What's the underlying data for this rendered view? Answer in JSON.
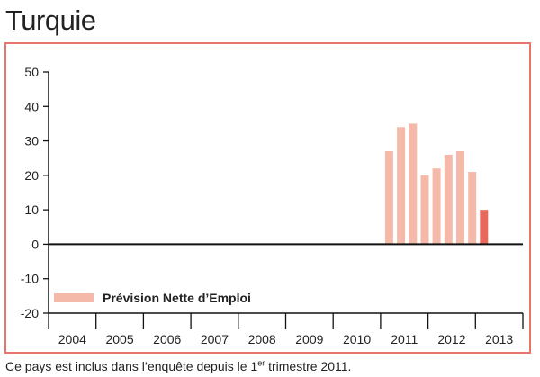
{
  "page": {
    "title": "Turquie",
    "footnote": {
      "before": "Ce pays est inclus dans l’enquête depuis le 1",
      "sup": "er",
      "after": " trimestre 2011."
    }
  },
  "chart_data": {
    "type": "bar",
    "title": "Turquie",
    "ylim": [
      -20,
      50
    ],
    "yticks": [
      50,
      40,
      30,
      20,
      10,
      0,
      -10,
      -20
    ],
    "ytick_labels": [
      "50",
      "40",
      "30",
      "20",
      "10",
      "0",
      "-10",
      "-20"
    ],
    "xtick_labels": [
      "2004",
      "2005",
      "2006",
      "2007",
      "2008",
      "2009",
      "2010",
      "2011",
      "2012",
      "2013"
    ],
    "grid": false,
    "legend": {
      "position": "bottom-left",
      "entries": [
        "Prévision Nette d’Emploi"
      ]
    },
    "series": [
      {
        "name": "Prévision Nette d’Emploi",
        "color": "#f5b9aa",
        "latest_color": "#e8685c",
        "points": [
          {
            "year": 2011,
            "quarter": 1,
            "value": 27
          },
          {
            "year": 2011,
            "quarter": 2,
            "value": 34
          },
          {
            "year": 2011,
            "quarter": 3,
            "value": 35
          },
          {
            "year": 2011,
            "quarter": 4,
            "value": 20
          },
          {
            "year": 2012,
            "quarter": 1,
            "value": 22
          },
          {
            "year": 2012,
            "quarter": 2,
            "value": 26
          },
          {
            "year": 2012,
            "quarter": 3,
            "value": 27
          },
          {
            "year": 2012,
            "quarter": 4,
            "value": 21
          },
          {
            "year": 2013,
            "quarter": 1,
            "value": 10
          }
        ]
      }
    ]
  }
}
